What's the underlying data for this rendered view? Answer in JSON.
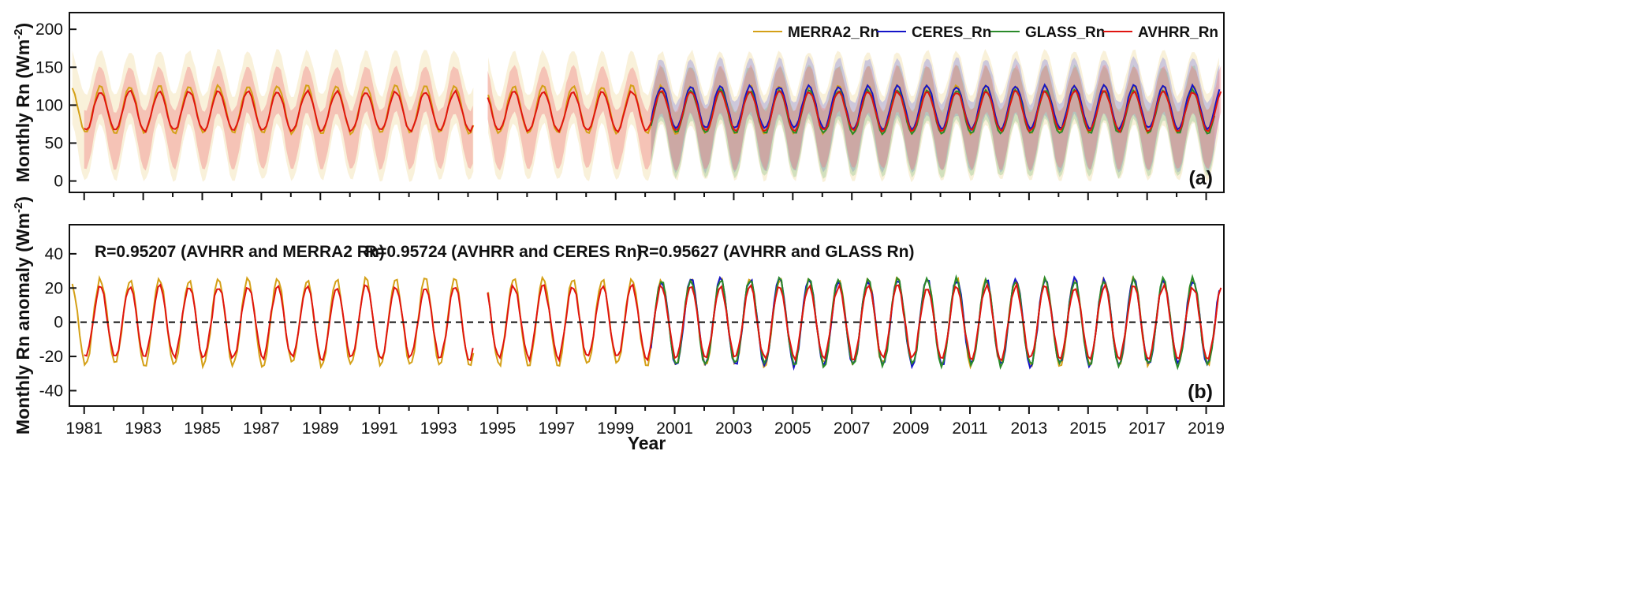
{
  "chart_data": [
    {
      "type": "line",
      "panel": "a",
      "panel_tag": "(a)",
      "ylabel_main": "Monthly Rn (Wm",
      "ylabel_sup": "-2",
      "ylabel_close": ")",
      "ylim": [
        -15,
        222
      ],
      "yticks": [
        "0",
        "50",
        "100",
        "150",
        "200"
      ],
      "xlim": [
        1980.5,
        2019.6
      ],
      "bands": "shaded min-max spatial range around each dataset",
      "series": [
        {
          "name": "MERRA2_Rn",
          "color": "#D4A017",
          "band_color": "#EBCB7A",
          "band_opacity": 0.28,
          "start": 1980.6,
          "end": 2019.5,
          "gap": [
            1994.2,
            1994.6
          ],
          "mean_base": 94,
          "amplitude": 27,
          "band_low": 0,
          "band_high": 172
        },
        {
          "name": "CERES_Rn",
          "color": "#1414C8",
          "band_color": "#7A7ADC",
          "band_opacity": 0.35,
          "start": 2000.2,
          "end": 2019.5,
          "mean_base": 97,
          "amplitude": 24,
          "band_low": 12,
          "band_high": 162
        },
        {
          "name": "GLASS_Rn",
          "color": "#2A8A2A",
          "band_color": "#7FBF7F",
          "band_opacity": 0.32,
          "start": 2000.2,
          "end": 2019.3,
          "mean_base": 91,
          "amplitude": 24,
          "band_low": 5,
          "band_high": 152
        },
        {
          "name": "AVHRR_Rn",
          "color": "#E0140F",
          "band_color": "#F08080",
          "band_opacity": 0.4,
          "start": 1981.0,
          "end": 2019.5,
          "gap": [
            1994.2,
            1994.6
          ],
          "mean_base": 92,
          "amplitude": 22,
          "band_low": 15,
          "band_high": 152
        }
      ]
    },
    {
      "type": "line",
      "panel": "b",
      "panel_tag": "(b)",
      "xlabel": "Year",
      "ylabel_main": "Monthly Rn anomaly (Wm",
      "ylabel_sup": "-2",
      "ylabel_close": ")",
      "ylim": [
        -49,
        57
      ],
      "yticks": [
        "-40",
        "-20",
        "0",
        "20",
        "40"
      ],
      "xlim": [
        1980.5,
        2019.6
      ],
      "xticks": [
        "1981",
        "1983",
        "1985",
        "1987",
        "1989",
        "1991",
        "1993",
        "1995",
        "1997",
        "1999",
        "2001",
        "2003",
        "2005",
        "2007",
        "2009",
        "2011",
        "2013",
        "2015",
        "2017",
        "2019"
      ],
      "zero_line": "dashed",
      "annotations": [
        "R=0.95207 (AVHRR and MERRA2 Rn)",
        "R=0.95724 (AVHRR and CERES Rn)",
        "R=0.95627 (AVHRR and GLASS Rn)"
      ],
      "series": [
        {
          "name": "MERRA2_Rn",
          "color": "#D4A017",
          "start": 1980.6,
          "end": 2019.5,
          "gap": [
            1994.2,
            1994.6
          ],
          "amplitude": 25
        },
        {
          "name": "CERES_Rn",
          "color": "#1414C8",
          "start": 2000.2,
          "end": 2019.5,
          "amplitude": 25
        },
        {
          "name": "GLASS_Rn",
          "color": "#2A8A2A",
          "start": 2000.2,
          "end": 2019.3,
          "amplitude": 25
        },
        {
          "name": "AVHRR_Rn",
          "color": "#E0140F",
          "start": 1981.0,
          "end": 2019.5,
          "gap": [
            1994.2,
            1994.6
          ],
          "amplitude": 21
        }
      ]
    }
  ]
}
